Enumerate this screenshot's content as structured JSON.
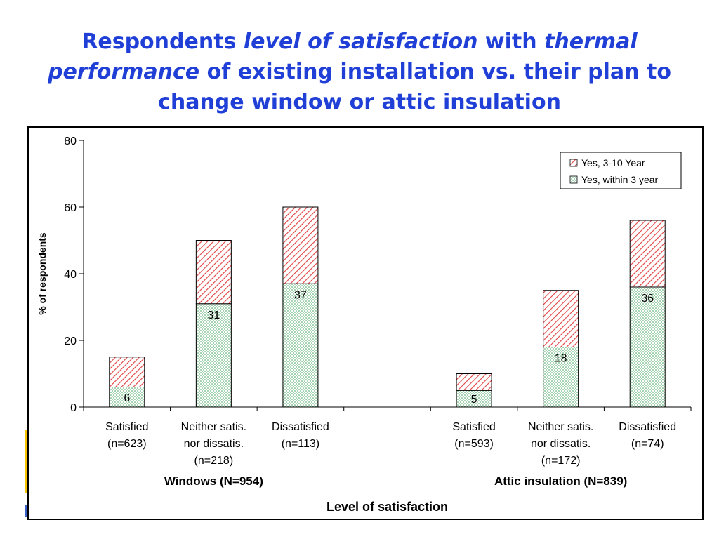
{
  "title": {
    "p1": "Respondents ",
    "p2": "level of satisfaction",
    "p3": " with ",
    "p4": "thermal performance",
    "p5": " of existing installation vs. their plan to change window or attic insulation"
  },
  "colors": {
    "series_3_10_year": "#e04040",
    "series_within_3_year": "#2f9a4a",
    "title": "#1f3fd6"
  },
  "chart_data": {
    "type": "bar",
    "stacked": true,
    "ylabel": "% of respondents",
    "xlabel": "Level of satisfaction",
    "ylim": [
      0,
      80
    ],
    "yticks": [
      0,
      20,
      40,
      60,
      80
    ],
    "grid": false,
    "legend_position": "top-right",
    "slots": 7,
    "categories": [
      {
        "slot": 0,
        "lines": [
          "Satisfied",
          "(n=623)"
        ]
      },
      {
        "slot": 1,
        "lines": [
          "Neither satis.",
          "nor dissatis.",
          "(n=218)"
        ]
      },
      {
        "slot": 2,
        "lines": [
          "Dissatisfied",
          "(n=113)"
        ]
      },
      {
        "slot": 4,
        "lines": [
          "Satisfied",
          "(n=593)"
        ]
      },
      {
        "slot": 5,
        "lines": [
          "Neither satis.",
          "nor dissatis.",
          "(n=172)"
        ]
      },
      {
        "slot": 6,
        "lines": [
          "Dissatisfied",
          "(n=74)"
        ]
      }
    ],
    "groups": [
      {
        "label": "Windows (N=954)",
        "slots": [
          0,
          2
        ]
      },
      {
        "label": "Attic insulation (N=839)",
        "slots": [
          4,
          6
        ]
      }
    ],
    "series": [
      {
        "name": "Yes, within 3 year",
        "pattern": "dots",
        "values": [
          6,
          31,
          37,
          5,
          18,
          36
        ],
        "labels": [
          "6",
          "31",
          "37",
          "5",
          "18",
          "36"
        ]
      },
      {
        "name": "Yes, 3-10 Year",
        "pattern": "hatch",
        "values": [
          9,
          19,
          23,
          5,
          17,
          20
        ]
      }
    ],
    "legend_order": [
      "Yes, 3-10 Year",
      "Yes, within 3 year"
    ]
  }
}
